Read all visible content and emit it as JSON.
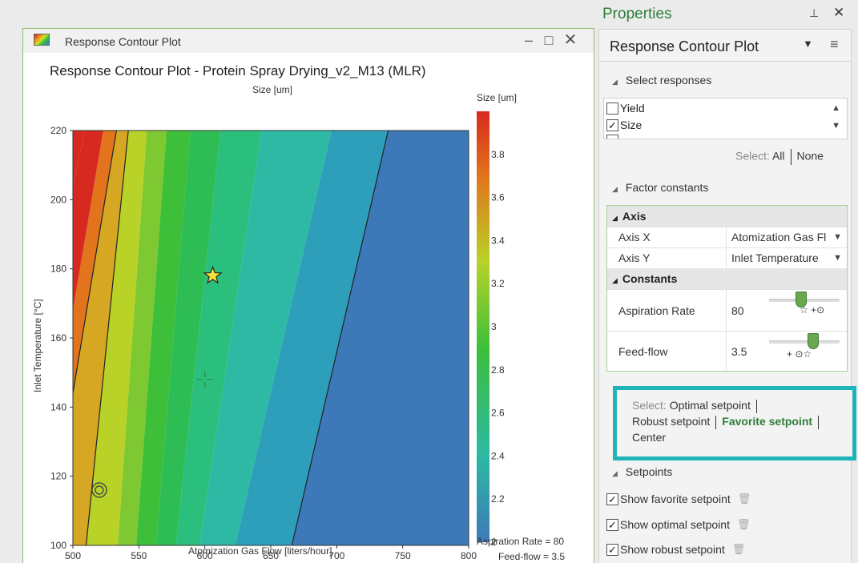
{
  "window": {
    "title": "Response Contour Plot",
    "min_glyph": "–",
    "max_glyph": "□",
    "close_glyph": "✕"
  },
  "chart_data": {
    "type": "contour",
    "title": "Response Contour Plot - Protein Spray Drying_v2_M13 (MLR)",
    "subtitle": "Size [um]",
    "xlabel": "Atomization Gas Flow [liters/hour]",
    "ylabel": "Inlet Temperature [°C]",
    "xlim": [
      500,
      800
    ],
    "ylim": [
      100,
      220
    ],
    "x_ticks": [
      500,
      550,
      600,
      650,
      700,
      750,
      800
    ],
    "y_ticks": [
      100,
      120,
      140,
      160,
      180,
      200,
      220
    ],
    "colorbar": {
      "label": "Size [um]",
      "range": [
        2,
        4.0
      ],
      "ticks": [
        2,
        2.2,
        2.4,
        2.6,
        2.8,
        3,
        3.2,
        3.4,
        3.6,
        3.8
      ]
    },
    "contour_levels": [
      2.0,
      2.2,
      2.4,
      2.6,
      2.8,
      3.0,
      3.2,
      3.4,
      3.6,
      3.8,
      4.0
    ],
    "contour_lines_drawn": [
      2.0,
      3.4,
      3.6
    ],
    "band_colors": [
      "#3d79b8",
      "#2e9fba",
      "#2db9a4",
      "#2bbf7e",
      "#2ebd55",
      "#3dbf3a",
      "#7ec832",
      "#b8d227",
      "#d6a723",
      "#e1741c",
      "#d7291f"
    ],
    "contour_endpoints": [
      {
        "level": 2.0,
        "bottom_x": 666,
        "top_x": 739
      },
      {
        "level": 2.2,
        "bottom_x": 623,
        "top_x": 696
      },
      {
        "level": 2.4,
        "bottom_x": 596,
        "top_x": 643
      },
      {
        "level": 2.6,
        "bottom_x": 578,
        "top_x": 612
      },
      {
        "level": 2.8,
        "bottom_x": 563,
        "top_x": 589
      },
      {
        "level": 3.0,
        "bottom_x": 548,
        "top_x": 571
      },
      {
        "level": 3.2,
        "bottom_x": 534,
        "top_x": 556
      },
      {
        "level": 3.4,
        "bottom_x": 510,
        "top_x": 542
      },
      {
        "level": 3.6,
        "left_y": 144,
        "top_x": 533
      },
      {
        "level": 3.8,
        "left_y": 168,
        "top_x": 523
      },
      {
        "level": 4.0,
        "left_y": 204,
        "top_x": 509
      }
    ],
    "markers": [
      {
        "name": "favorite setpoint",
        "symbol": "star",
        "x": 606,
        "y": 178,
        "color": "#f5e23a"
      },
      {
        "name": "optimal setpoint",
        "symbol": "crosshair",
        "x": 600,
        "y": 148,
        "color": "#2b8a3e"
      },
      {
        "name": "robust setpoint",
        "symbol": "target",
        "x": 520,
        "y": 116,
        "color": "#444444"
      }
    ],
    "footnotes": [
      "Aspiration Rate = 80",
      "Feed-flow = 3.5"
    ]
  },
  "properties": {
    "title": "Properties",
    "pin_glyph": "⊥",
    "close_glyph": "✕",
    "header": "Response Contour Plot",
    "dropdown_glyph": "▼",
    "menu_glyph": "≡",
    "select_responses": "Select responses",
    "responses": [
      {
        "label": "Yield",
        "checked": false
      },
      {
        "label": "Size",
        "checked": true
      }
    ],
    "select_label": "Select:",
    "select_all": "All",
    "select_none": "None",
    "factor_constants": "Factor constants",
    "axis_group": "Axis",
    "axis_x_label": "Axis X",
    "axis_x_value": "Atomization Gas Fl",
    "axis_y_label": "Axis Y",
    "axis_y_value": "Inlet Temperature",
    "constants_group": "Constants",
    "aspiration_label": "Aspiration Rate",
    "aspiration_value": "80",
    "aspiration_slider_fraction": 0.45,
    "aspiration_marks": "☆   +⊙",
    "feedflow_label": "Feed-flow",
    "feedflow_value": "3.5",
    "feedflow_slider_fraction": 0.62,
    "feedflow_marks": "+  ⊙☆",
    "setpoint_select_label": "Select:",
    "optimal_setpoint": "Optimal setpoint",
    "robust_setpoint": "Robust setpoint",
    "favorite_setpoint": "Favorite setpoint",
    "center": "Center",
    "setpoints_section": "Setpoints",
    "show_favorite": "Show favorite setpoint",
    "show_optimal": "Show optimal setpoint",
    "show_robust": "Show robust setpoint",
    "trash_glyph": "🗑"
  },
  "colors": {
    "accent_green": "#2e7d3a",
    "highlight_teal": "#1fb5b8"
  }
}
